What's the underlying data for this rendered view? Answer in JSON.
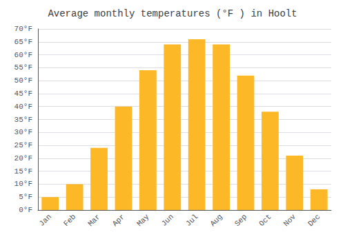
{
  "chart_data": {
    "type": "bar",
    "title": "Average monthly temperatures (°F ) in Hoolt",
    "categories": [
      "Jan",
      "Feb",
      "Mar",
      "Apr",
      "May",
      "Jun",
      "Jul",
      "Aug",
      "Sep",
      "Oct",
      "Nov",
      "Dec"
    ],
    "values": [
      5,
      10,
      24,
      40,
      54,
      64,
      66,
      64,
      52,
      38,
      21,
      8
    ],
    "color": "#FDB827",
    "ylim": [
      0,
      70
    ],
    "yticks": [
      {
        "value": 0,
        "label": "0°F"
      },
      {
        "value": 5,
        "label": "5°F"
      },
      {
        "value": 10,
        "label": "10°F"
      },
      {
        "value": 15,
        "label": "15°F"
      },
      {
        "value": 20,
        "label": "20°F"
      },
      {
        "value": 25,
        "label": "25°F"
      },
      {
        "value": 30,
        "label": "30°F"
      },
      {
        "value": 35,
        "label": "35°F"
      },
      {
        "value": 40,
        "label": "40°F"
      },
      {
        "value": 45,
        "label": "45°F"
      },
      {
        "value": 50,
        "label": "50°F"
      },
      {
        "value": 55,
        "label": "55°F"
      },
      {
        "value": 60,
        "label": "60°F"
      },
      {
        "value": 65,
        "label": "65°F"
      },
      {
        "value": 70,
        "label": "70°F"
      }
    ],
    "grid": true
  }
}
